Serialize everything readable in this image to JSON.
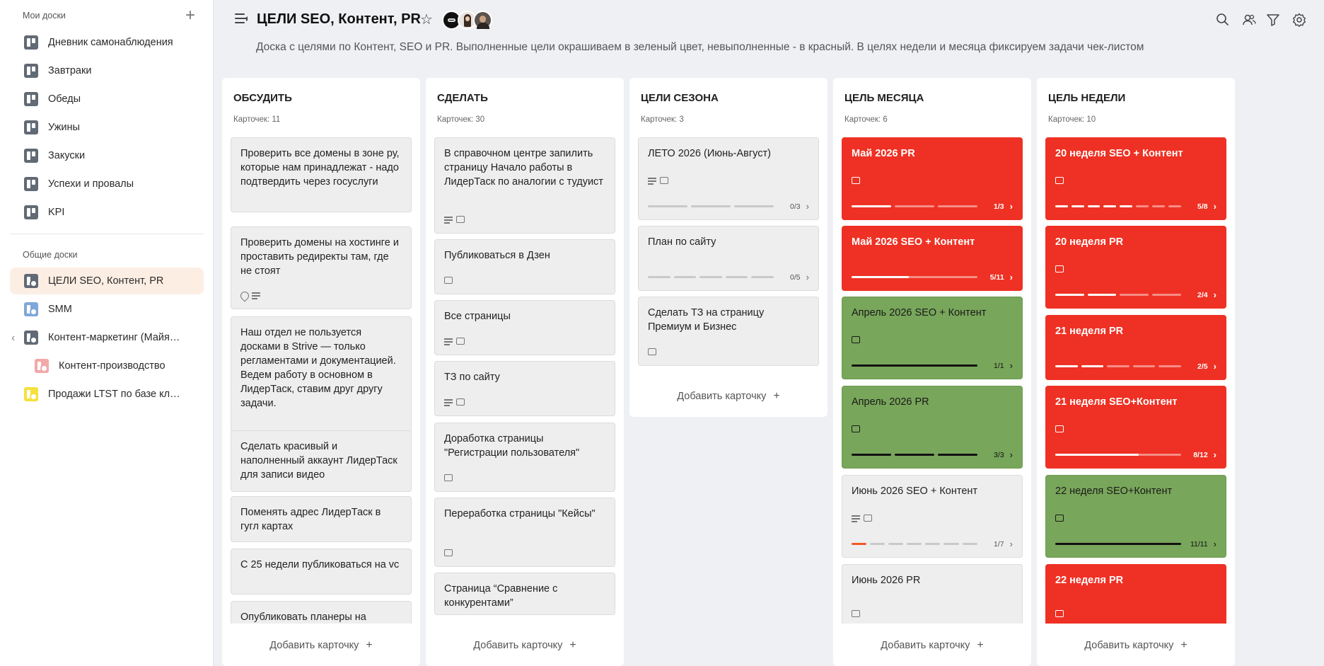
{
  "sidebar": {
    "my_boards_title": "Мои доски",
    "shared_boards_title": "Общие доски",
    "my_boards": [
      {
        "label": "Дневник самонаблюдения"
      },
      {
        "label": "Завтраки"
      },
      {
        "label": "Обеды"
      },
      {
        "label": "Ужины"
      },
      {
        "label": "Закуски"
      },
      {
        "label": "Успехи и провалы"
      },
      {
        "label": "KPI"
      }
    ],
    "shared_boards": [
      {
        "label": "ЦЕЛИ SEO, Контент, PR",
        "active": true,
        "color": "#616a75"
      },
      {
        "label": "SMM",
        "color": "#7fa7d9"
      },
      {
        "label": "Контент-маркетинг (Майя…",
        "color": "#616a75"
      },
      {
        "label": "Контент-производство",
        "color": "#f2a9a9"
      },
      {
        "label": "Продажи LTST по базе кл…",
        "color": "#f5e13d"
      }
    ]
  },
  "header": {
    "title": "ЦЕЛИ SEO, Контент, PR",
    "description": "Доска с целями по Контент, SEO и PR. Выполненные цели окрашиваем в зеленый цвет, невыполненные - в красный. В целях недели и месяца фиксируем задачи чек-листом"
  },
  "colors": {
    "red": "#ee3124",
    "green": "#78a65a",
    "accent": "#f05a28"
  },
  "add_card_label": "Добавить карточку",
  "columns": [
    {
      "title": "ОБСУДИТЬ",
      "count": "Карточек: 11",
      "cards": [
        {
          "title": "Проверить все домены в зоне ру, которые нам принадлежат - надо подтвердить через госуслуги"
        },
        {
          "title": "Проверить домены на хостинге и проставить редиректы там, где не стоят",
          "icons": [
            "clip",
            "desc"
          ]
        },
        {
          "title": "Наш отдел не пользуется досками в Strive — только регламентами и документацией. Ведем работу в основном в ЛидерТаск, ставим друг другу задачи."
        },
        {
          "title": "Сделать красивый и наполненный аккаунт ЛидерТаск для записи видео"
        },
        {
          "title": "Поменять адрес ЛидерТаск в гугл картах"
        },
        {
          "title": "С 25 недели публиковаться на vc"
        },
        {
          "title": "Опубликовать планеры на"
        }
      ]
    },
    {
      "title": "СДЕЛАТЬ",
      "count": "Карточек: 30",
      "cards": [
        {
          "title": "В справочном центре запилить страницу Начало работы в ЛидерТаск по аналогии с тудуист",
          "icons": [
            "desc",
            "cmt"
          ]
        },
        {
          "title": "Публиковаться в Дзен",
          "icons": [
            "cmt"
          ]
        },
        {
          "title": "Все страницы",
          "icons": [
            "desc",
            "cmt"
          ]
        },
        {
          "title": "ТЗ по сайту",
          "icons": [
            "desc",
            "cmt"
          ]
        },
        {
          "title": "Доработка страницы \"Регистрации пользователя\"",
          "icons": [
            "cmt"
          ]
        },
        {
          "title": "Переработка страницы \"Кейсы\"",
          "icons": [
            "cmt"
          ]
        },
        {
          "title": "Страница “Сравнение с конкурентами”"
        }
      ]
    },
    {
      "title": "ЦЕЛИ СЕЗОНА",
      "count": "Карточек: 3",
      "cards": [
        {
          "title": "ЛЕТО 2026 (Июнь-Август)",
          "icons": [
            "desc",
            "cmt"
          ],
          "progress": "0/3",
          "done": 0,
          "total": 3
        },
        {
          "title": "План по сайту",
          "progress": "0/5",
          "done": 0,
          "total": 5
        },
        {
          "title": "Сделать ТЗ на страницу Премиум и Бизнес",
          "icons": [
            "cmt"
          ]
        }
      ]
    },
    {
      "title": "ЦЕЛЬ МЕСЯЦА",
      "count": "Карточек: 6",
      "cards": [
        {
          "title": "Май 2026 PR",
          "status": "red",
          "icons": [
            "cmt"
          ],
          "progress": "1/3",
          "done": 1,
          "total": 3
        },
        {
          "title": "Май 2026 SEO + Контент",
          "status": "red",
          "progress": "5/11",
          "done": 5,
          "total": 11,
          "continuous": true
        },
        {
          "title": "Апрель 2026 SEO + Контент",
          "status": "green",
          "icons": [
            "cmt"
          ],
          "progress": "1/1",
          "done": 1,
          "total": 1
        },
        {
          "title": "Апрель 2026 PR",
          "status": "green",
          "icons": [
            "cmt"
          ],
          "progress": "3/3",
          "done": 3,
          "total": 3
        },
        {
          "title": "Июнь 2026 SEO + Контент",
          "icons": [
            "desc",
            "cmt"
          ],
          "progress": "1/7",
          "done": 1,
          "total": 7,
          "accent": true
        },
        {
          "title": "Июнь 2026 PR",
          "icons": [
            "cmt"
          ]
        }
      ]
    },
    {
      "title": "ЦЕЛЬ НЕДЕЛИ",
      "count": "Карточек: 10",
      "cards": [
        {
          "title": "20 неделя SEO + Контент",
          "status": "red",
          "icons": [
            "cmt"
          ],
          "progress": "5/8",
          "done": 5,
          "total": 8
        },
        {
          "title": "20 неделя PR",
          "status": "red",
          "icons": [
            "cmt"
          ],
          "progress": "2/4",
          "done": 2,
          "total": 4
        },
        {
          "title": "21 неделя PR",
          "status": "red",
          "progress": "2/5",
          "done": 2,
          "total": 5
        },
        {
          "title": "21 неделя SEO+Контент",
          "status": "red",
          "icons": [
            "cmt"
          ],
          "progress": "8/12",
          "done": 8,
          "total": 12,
          "continuous": true
        },
        {
          "title": "22 неделя SEO+Контент",
          "status": "green",
          "icons": [
            "cmt"
          ],
          "progress": "11/11",
          "done": 11,
          "total": 11,
          "continuous": true
        },
        {
          "title": "22 неделя PR",
          "status": "red",
          "icons": [
            "cmt"
          ]
        }
      ]
    }
  ]
}
